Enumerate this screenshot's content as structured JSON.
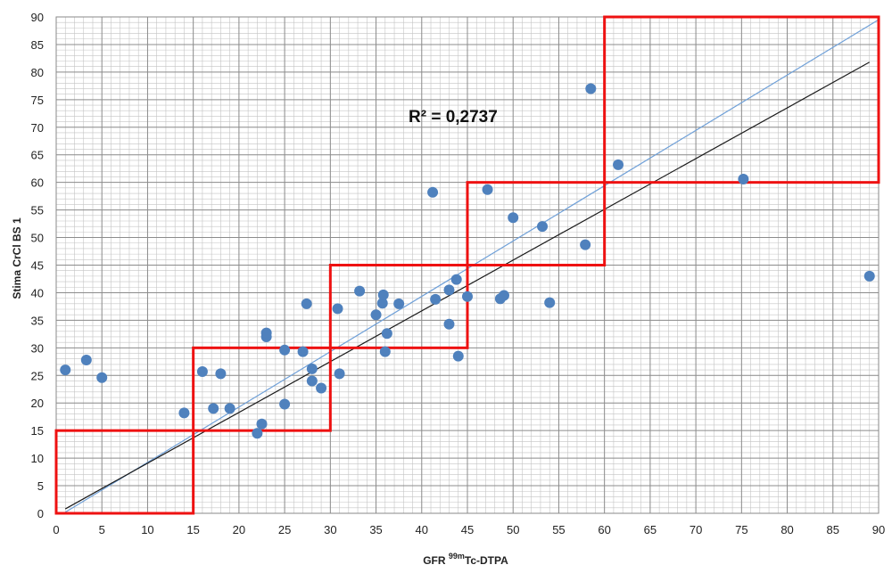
{
  "chart_data": {
    "type": "scatter",
    "xlabel_main": "GFR ",
    "xlabel_sup": "99m",
    "xlabel_rest": "Tc-DTPA",
    "ylabel": "Stima  CrCl  BS 1",
    "annotation": "R² = 0,2737",
    "xlim": [
      0,
      90
    ],
    "ylim": [
      0,
      90
    ],
    "x_ticks": [
      0,
      5,
      10,
      15,
      20,
      25,
      30,
      35,
      40,
      45,
      50,
      55,
      60,
      65,
      70,
      75,
      80,
      85,
      90
    ],
    "y_ticks": [
      0,
      5,
      10,
      15,
      20,
      25,
      30,
      35,
      40,
      45,
      50,
      55,
      60,
      65,
      70,
      75,
      80,
      85,
      90
    ],
    "minor_grid_step": 1,
    "grid": true,
    "point_color": "#4f81bd",
    "points": [
      [
        1,
        26
      ],
      [
        3.3,
        27.8
      ],
      [
        5,
        24.6
      ],
      [
        14,
        18.2
      ],
      [
        16,
        25.7
      ],
      [
        17.2,
        19
      ],
      [
        18,
        25.3
      ],
      [
        19,
        19
      ],
      [
        22,
        14.5
      ],
      [
        22.5,
        16.2
      ],
      [
        23,
        32
      ],
      [
        23,
        32.7
      ],
      [
        25,
        29.6
      ],
      [
        25,
        19.8
      ],
      [
        27,
        29.3
      ],
      [
        27.4,
        38
      ],
      [
        28,
        24
      ],
      [
        28,
        26.2
      ],
      [
        29,
        22.7
      ],
      [
        30.8,
        37.1
      ],
      [
        31,
        25.3
      ],
      [
        33.2,
        40.3
      ],
      [
        35,
        36
      ],
      [
        35.7,
        38.1
      ],
      [
        35.8,
        39.6
      ],
      [
        36,
        29.3
      ],
      [
        36.2,
        32.6
      ],
      [
        37.5,
        38
      ],
      [
        41.2,
        58.2
      ],
      [
        41.5,
        38.8
      ],
      [
        43,
        40.5
      ],
      [
        43,
        34.3
      ],
      [
        43.8,
        42.4
      ],
      [
        44,
        28.5
      ],
      [
        45,
        39.3
      ],
      [
        47.2,
        58.7
      ],
      [
        48.6,
        38.9
      ],
      [
        49,
        39.5
      ],
      [
        50,
        53.6
      ],
      [
        53.2,
        52
      ],
      [
        54,
        38.2
      ],
      [
        57.9,
        48.7
      ],
      [
        58.5,
        77
      ],
      [
        61.5,
        63.2
      ],
      [
        75.2,
        60.6
      ],
      [
        89,
        43
      ]
    ],
    "lines": [
      {
        "name": "identity",
        "color": "#6fa0d8",
        "x": [
          1,
          90
        ],
        "y": [
          0.2,
          89.5
        ]
      },
      {
        "name": "fit",
        "color": "#1a1a1a",
        "x": [
          1,
          89
        ],
        "y": [
          0.8,
          81.8
        ]
      }
    ],
    "boxes": [
      {
        "x": [
          0,
          15
        ],
        "y": [
          0,
          15
        ]
      },
      {
        "x": [
          15,
          30
        ],
        "y": [
          15,
          30
        ]
      },
      {
        "x": [
          30,
          45
        ],
        "y": [
          30,
          45
        ]
      },
      {
        "x": [
          45,
          60
        ],
        "y": [
          45,
          60
        ]
      },
      {
        "x": [
          60,
          90
        ],
        "y": [
          60,
          90
        ]
      }
    ],
    "box_color": "#ee1111"
  }
}
